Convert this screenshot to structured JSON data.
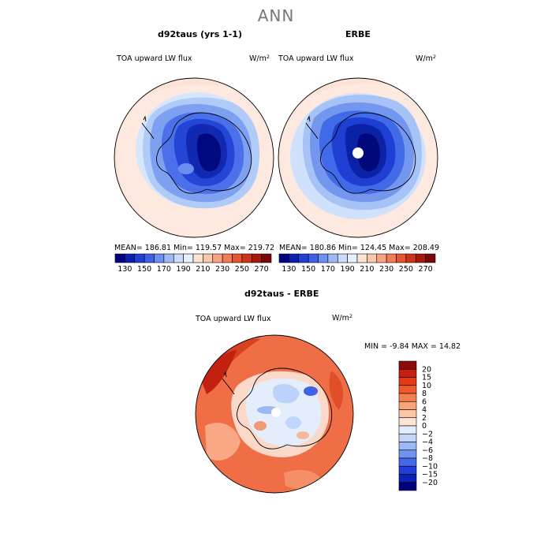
{
  "page": {
    "title": "ANN"
  },
  "panels": [
    {
      "title": "d92taus (yrs 1-1)",
      "variable": "TOA upward LW flux",
      "unit_base": "W/m",
      "unit_exp": "2",
      "stats_text": "MEAN= 186.81   Min= 119.57   Max= 219.72"
    },
    {
      "title": "ERBE",
      "variable": "TOA upward LW flux",
      "unit_base": "W/m",
      "unit_exp": "2",
      "stats_text": "MEAN= 180.86   Min= 124.45   Max= 208.49"
    }
  ],
  "top_colorbar": {
    "tick_labels": [
      "130",
      "150",
      "170",
      "190",
      "210",
      "230",
      "250",
      "270"
    ],
    "colors": [
      "#000080",
      "#0a1fb0",
      "#1f3fd8",
      "#3d62e8",
      "#6f8ff2",
      "#9fb8f7",
      "#cadcfb",
      "#e6effd",
      "#fde3d2",
      "#fbc7ac",
      "#f7a380",
      "#f17d55",
      "#e5552f",
      "#d0311a",
      "#a8180c",
      "#7a0808"
    ]
  },
  "diff_panel": {
    "title": "d92taus - ERBE",
    "variable": "TOA upward LW flux",
    "unit_base": "W/m",
    "unit_exp": "2",
    "min_max_text": "MIN =   -9.84  MAX =   14.82",
    "colorbar": {
      "levels": [
        "20",
        "15",
        "10",
        "8",
        "6",
        "4",
        "2",
        "0",
        "−2",
        "−4",
        "−6",
        "−8",
        "−10",
        "−15",
        "−20"
      ],
      "colors": [
        "#8b0a0a",
        "#c41f0f",
        "#e23a17",
        "#ef5a2a",
        "#f57f4f",
        "#f9a37b",
        "#fbc7a9",
        "#fde5d6",
        "#e1ecfc",
        "#c3d6fa",
        "#9cb9f5",
        "#6f93ee",
        "#4468e6",
        "#1f3fd8",
        "#0a23b5",
        "#00007a"
      ]
    }
  },
  "colors": {
    "ocean_far": "#fbe3d6",
    "ocean_mid": "#d9e8fc",
    "ocean_near": "#a9c4f7",
    "land_edge": "#4f75ea",
    "land_core": "#102aa8",
    "land_deep": "#000a80",
    "diff_base": "#ef6e46"
  }
}
